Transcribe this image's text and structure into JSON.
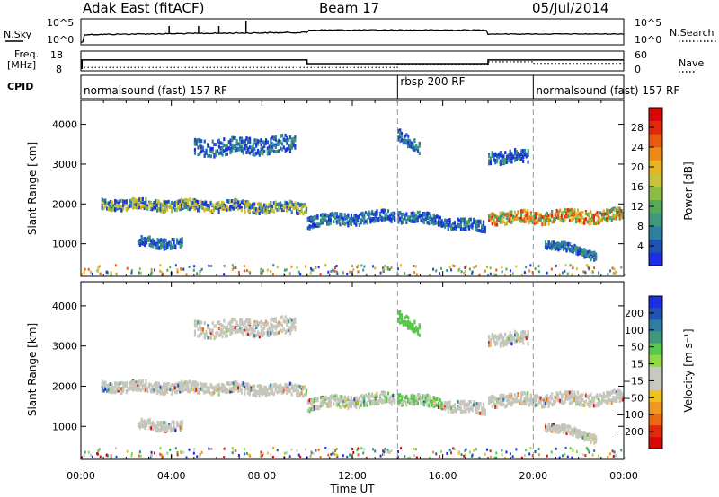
{
  "header": {
    "title": "Adak East (fitACF)",
    "beam": "Beam 17",
    "date": "05/Jul/2014"
  },
  "aux_panels": {
    "nsky_label": "N.Sky",
    "nsky_ticks": [
      "10^5",
      "10^0"
    ],
    "nsearch_label": "N.Search",
    "nsearch_ticks": [
      "10^5",
      "10^0"
    ],
    "freq_label_1": "Freq.",
    "freq_label_2": "[MHz]",
    "freq_ticks": [
      "18",
      "8"
    ],
    "nave_label": "Nave",
    "nave_ticks": [
      "60",
      "0"
    ],
    "cpid_label": "CPID",
    "cpid_segments": [
      {
        "label": "normalsound (fast) 157 RF",
        "start_hour": 0,
        "end_hour": 14.0
      },
      {
        "label": "rbsp 200 RF",
        "start_hour": 14.0,
        "end_hour": 20.0
      },
      {
        "label": "normalsound (fast) 157 RF",
        "start_hour": 20.0,
        "end_hour": 24.0
      }
    ]
  },
  "chart_data": [
    {
      "type": "heatmap",
      "name": "power",
      "ylabel": "Slant Range [km]",
      "x_range_hours": [
        0,
        24
      ],
      "ylim": [
        180,
        4600
      ],
      "yticks": [
        "1000",
        "2000",
        "3000",
        "4000"
      ],
      "colorbar": {
        "label": "Power [dB]",
        "ticks": [
          "4",
          "8",
          "12",
          "16",
          "20",
          "24",
          "28"
        ],
        "colors": [
          "#1c2ee6",
          "#1f54b4",
          "#2f7fa0",
          "#3f9a7c",
          "#57a95c",
          "#8dbd45",
          "#c8c43a",
          "#e7b320",
          "#ee8a14",
          "#ea5a0e",
          "#e22a0a",
          "#d80808"
        ]
      },
      "scatter_bands": [
        {
          "t0": 0.9,
          "t1": 10.0,
          "r0": 2000,
          "r1": 1900,
          "w": 130,
          "level": "mixed"
        },
        {
          "t0": 10.0,
          "t1": 13.9,
          "r0": 1550,
          "r1": 1700,
          "w": 140,
          "level": "low"
        },
        {
          "t0": 14.0,
          "t1": 17.9,
          "r0": 1700,
          "r1": 1400,
          "w": 130,
          "level": "low"
        },
        {
          "t0": 18.0,
          "t1": 24.0,
          "r0": 1650,
          "r1": 1700,
          "w": 150,
          "level": "high"
        },
        {
          "t0": 5.0,
          "t1": 9.5,
          "r0": 3400,
          "r1": 3500,
          "w": 200,
          "level": "low"
        },
        {
          "t0": 18.0,
          "t1": 19.8,
          "r0": 3180,
          "r1": 3180,
          "w": 150,
          "level": "low"
        },
        {
          "t0": 14.0,
          "t1": 15.0,
          "r0": 3800,
          "r1": 3350,
          "w": 150,
          "level": "low"
        },
        {
          "t0": 2.5,
          "t1": 4.5,
          "r0": 1050,
          "r1": 1000,
          "w": 120,
          "level": "low"
        },
        {
          "t0": 20.5,
          "t1": 22.8,
          "r0": 1000,
          "r1": 700,
          "w": 100,
          "level": "low"
        }
      ]
    },
    {
      "type": "heatmap",
      "name": "velocity",
      "xlabel": "Time UT",
      "ylabel": "Slant Range [km]",
      "x_range_hours": [
        0,
        24
      ],
      "xticks": [
        "00:00",
        "04:00",
        "08:00",
        "12:00",
        "16:00",
        "20:00",
        "00:00"
      ],
      "ylim": [
        180,
        4600
      ],
      "yticks": [
        "1000",
        "2000",
        "3000",
        "4000"
      ],
      "colorbar": {
        "label": "Velocity [m s⁻¹]",
        "ticks": [
          "200",
          "100",
          "50",
          "15",
          "−15",
          "−50",
          "−100",
          "−200"
        ],
        "colors": [
          "#1c2ee6",
          "#1f54b4",
          "#2f7fa0",
          "#3f9a7c",
          "#57c84a",
          "#8fd84a",
          "#c8c8c0",
          "#c8c8c0",
          "#f0c020",
          "#f09820",
          "#ee6a10",
          "#e22a0a",
          "#d80808"
        ]
      },
      "ground_scatter_color": "#c6c6bc"
    }
  ]
}
